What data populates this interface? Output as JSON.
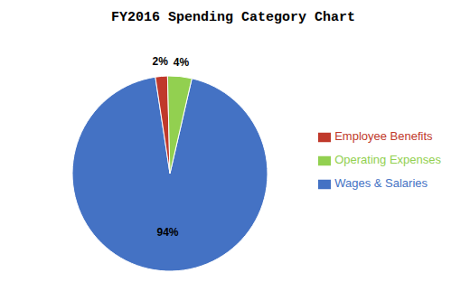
{
  "chart_data": {
    "type": "pie",
    "title": "FY2016 Spending Category Chart",
    "categories": [
      "Wages & Salaries",
      "Employee Benefits",
      "Operating Expenses"
    ],
    "values": [
      94,
      2,
      4
    ],
    "value_labels": [
      "94%",
      "2%",
      "4%"
    ],
    "colors": [
      "#4472C4",
      "#C0392B",
      "#92D050"
    ],
    "data_labels": true,
    "legend": "right"
  }
}
